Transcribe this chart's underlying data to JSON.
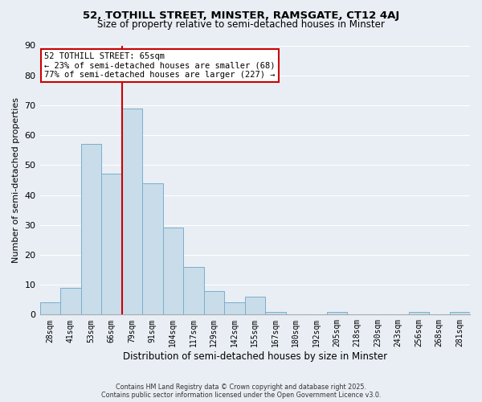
{
  "title": "52, TOTHILL STREET, MINSTER, RAMSGATE, CT12 4AJ",
  "subtitle": "Size of property relative to semi-detached houses in Minster",
  "xlabel": "Distribution of semi-detached houses by size in Minster",
  "ylabel": "Number of semi-detached properties",
  "bar_color": "#c8dcea",
  "bar_edge_color": "#7aaecb",
  "background_color": "#e8eef4",
  "grid_color": "#ffffff",
  "categories": [
    "28sqm",
    "41sqm",
    "53sqm",
    "66sqm",
    "79sqm",
    "91sqm",
    "104sqm",
    "117sqm",
    "129sqm",
    "142sqm",
    "155sqm",
    "167sqm",
    "180sqm",
    "192sqm",
    "205sqm",
    "218sqm",
    "230sqm",
    "243sqm",
    "256sqm",
    "268sqm",
    "281sqm"
  ],
  "values": [
    4,
    9,
    57,
    47,
    69,
    44,
    29,
    16,
    8,
    4,
    6,
    1,
    0,
    0,
    1,
    0,
    0,
    0,
    1,
    0,
    1
  ],
  "ylim": [
    0,
    90
  ],
  "yticks": [
    0,
    10,
    20,
    30,
    40,
    50,
    60,
    70,
    80,
    90
  ],
  "vline_x": 3.5,
  "vline_color": "#cc0000",
  "annotation_title": "52 TOTHILL STREET: 65sqm",
  "annotation_line1": "← 23% of semi-detached houses are smaller (68)",
  "annotation_line2": "77% of semi-detached houses are larger (227) →",
  "annotation_box_color": "#ffffff",
  "annotation_box_edge": "#cc0000",
  "footer1": "Contains HM Land Registry data © Crown copyright and database right 2025.",
  "footer2": "Contains public sector information licensed under the Open Government Licence v3.0."
}
